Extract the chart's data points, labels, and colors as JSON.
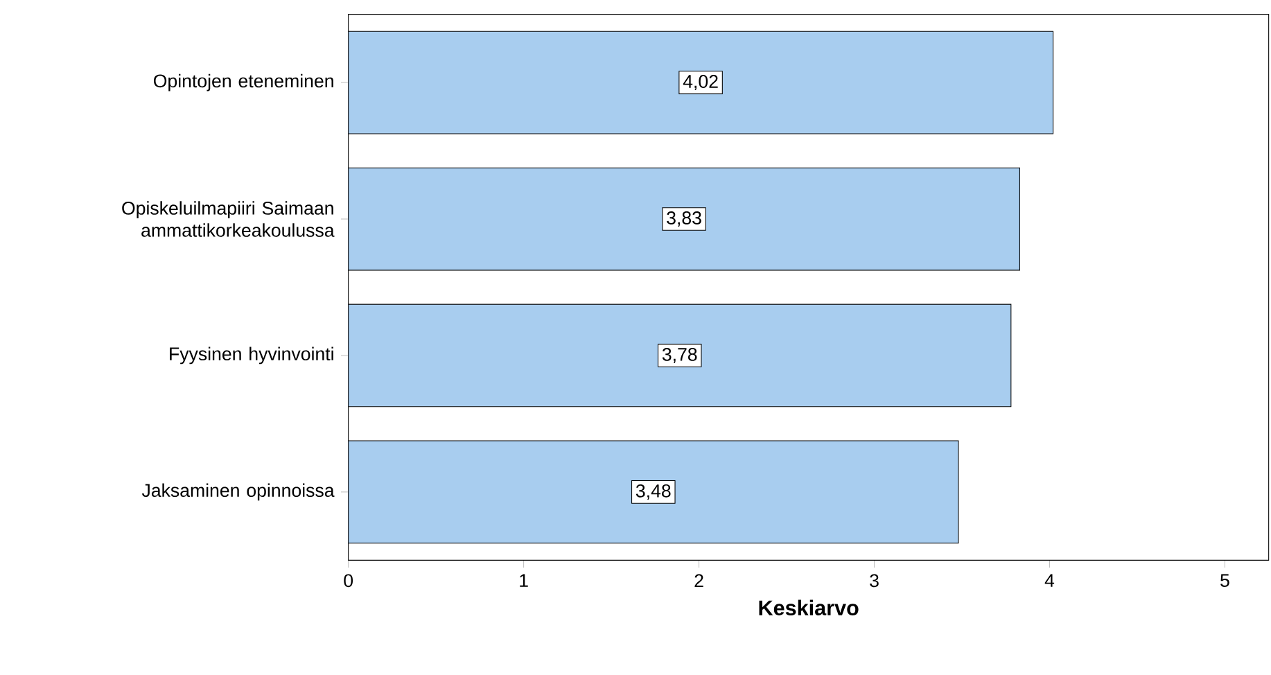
{
  "chart_data": {
    "type": "bar",
    "orientation": "horizontal",
    "xlabel": "Keskiarvo",
    "categories": [
      "Opintojen eteneminen",
      "Opiskeluilmapiiri Saimaan ammattikorkeakoulussa",
      "Fyysinen hyvinvointi",
      "Jaksaminen opinnoissa"
    ],
    "values": [
      4.02,
      3.83,
      3.78,
      3.48
    ],
    "value_labels": [
      "4,02",
      "3,83",
      "3,78",
      "3,48"
    ],
    "color": "#a8cdef",
    "xlim": [
      0,
      5.25
    ],
    "xticks": [
      0,
      1,
      2,
      3,
      4,
      5
    ]
  }
}
